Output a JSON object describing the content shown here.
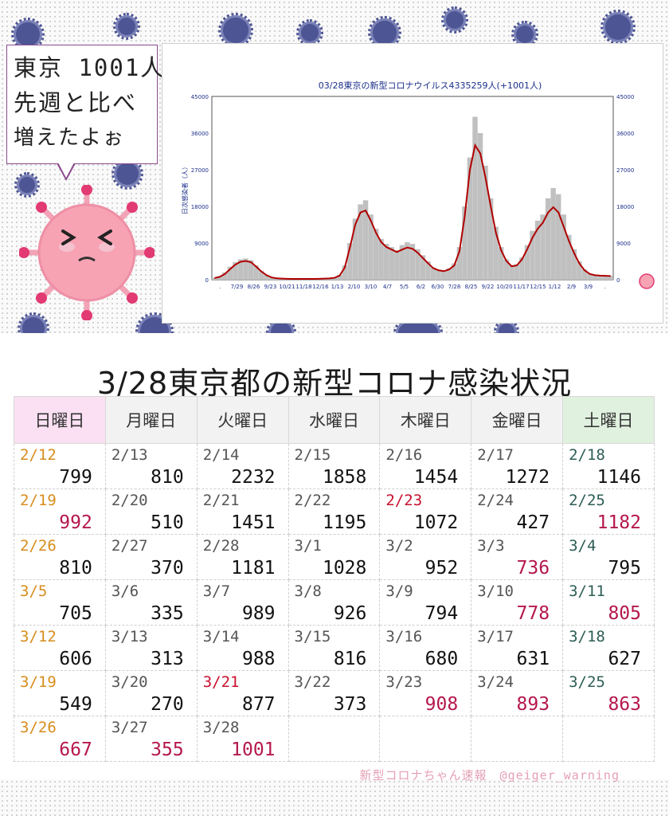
{
  "bubble": {
    "line1": "東京 1001人",
    "line2": "先週と比べ",
    "line3": "増えたよぉ"
  },
  "heading": "3/28東京都の新型コロナ感染状況",
  "footer": "新型コロナちゃん速報　@geiger_warning",
  "colors": {
    "date_orange": "#d78d1d",
    "date_red": "#c8102e",
    "date_teal": "#2d5d55",
    "value_red": "#b5174d",
    "line": "#b00000",
    "bar": "#c0c0c0"
  },
  "chart_data": {
    "type": "bar",
    "title": "03/28東京の新型コロナウイルス4335259人(+1001人)",
    "ylabel": "日次感染者（人）",
    "ylim": [
      0,
      45000
    ],
    "yticks": [
      "45000",
      "36000",
      "27000",
      "18000",
      "9000",
      "0"
    ],
    "y2ticks": [
      "45000",
      "36000",
      "27000",
      "18000",
      "9000",
      "0"
    ],
    "xticks": [
      ".",
      "7/29",
      "8/26",
      "9/23",
      "10/21",
      "11/18",
      "12/16",
      "1/13",
      "2/10",
      "3/10",
      "4/7",
      "5/5",
      "6/2",
      "6/30",
      "7/28",
      "8/25",
      "9/22",
      "10/20",
      "11/17",
      "12/15",
      "1/12",
      "2/9",
      "3/9",
      "."
    ],
    "series": [
      {
        "type": "bar",
        "values": [
          500,
          900,
          1800,
          3200,
          4300,
          5000,
          5200,
          4800,
          3500,
          2200,
          1200,
          600,
          400,
          300,
          250,
          200,
          200,
          200,
          200,
          200,
          250,
          300,
          350,
          500,
          1200,
          3500,
          9000,
          15000,
          18500,
          19500,
          16000,
          12500,
          10000,
          8800,
          8000,
          7200,
          8500,
          9200,
          8800,
          7500,
          6000,
          4500,
          3000,
          2500,
          2300,
          2800,
          4000,
          8000,
          18000,
          30000,
          40000,
          36000,
          28000,
          20000,
          13000,
          8000,
          5000,
          3500,
          3800,
          5500,
          8500,
          12000,
          14500,
          16000,
          20000,
          22500,
          21000,
          16000,
          11000,
          7500,
          4500,
          2500,
          1500,
          1200,
          1100,
          1000,
          1000
        ]
      },
      {
        "type": "line",
        "values": [
          400,
          700,
          1400,
          2600,
          3700,
          4400,
          4600,
          4300,
          3200,
          2000,
          1100,
          550,
          350,
          280,
          230,
          190,
          190,
          190,
          190,
          190,
          230,
          280,
          320,
          450,
          1000,
          3000,
          8000,
          13500,
          16500,
          17000,
          14500,
          11500,
          9200,
          8000,
          7400,
          6800,
          7400,
          7900,
          7600,
          6600,
          5300,
          4000,
          2800,
          2300,
          2100,
          2500,
          3500,
          7000,
          15500,
          27000,
          33000,
          31000,
          25000,
          18000,
          11500,
          7200,
          4600,
          3300,
          3500,
          5000,
          7500,
          10300,
          12500,
          14000,
          16500,
          17800,
          16500,
          13000,
          9500,
          6500,
          4000,
          2300,
          1400,
          1100,
          1000,
          950,
          900
        ]
      }
    ]
  },
  "table": {
    "headers": [
      "日曜日",
      "月曜日",
      "火曜日",
      "水曜日",
      "木曜日",
      "金曜日",
      "土曜日"
    ],
    "rows": [
      [
        {
          "d": "2/12",
          "v": "799"
        },
        {
          "d": "2/13",
          "v": "810"
        },
        {
          "d": "2/14",
          "v": "2232"
        },
        {
          "d": "2/15",
          "v": "1858"
        },
        {
          "d": "2/16",
          "v": "1454"
        },
        {
          "d": "2/17",
          "v": "1272"
        },
        {
          "d": "2/18",
          "v": "1146"
        }
      ],
      [
        {
          "d": "2/19",
          "v": "992"
        },
        {
          "d": "2/20",
          "v": "510"
        },
        {
          "d": "2/21",
          "v": "1451"
        },
        {
          "d": "2/22",
          "v": "1195"
        },
        {
          "d": "2/23",
          "v": "1072"
        },
        {
          "d": "2/24",
          "v": "427"
        },
        {
          "d": "2/25",
          "v": "1182"
        }
      ],
      [
        {
          "d": "2/26",
          "v": "810"
        },
        {
          "d": "2/27",
          "v": "370"
        },
        {
          "d": "2/28",
          "v": "1181"
        },
        {
          "d": "3/1",
          "v": "1028"
        },
        {
          "d": "3/2",
          "v": "952"
        },
        {
          "d": "3/3",
          "v": "736"
        },
        {
          "d": "3/4",
          "v": "795"
        }
      ],
      [
        {
          "d": "3/5",
          "v": "705"
        },
        {
          "d": "3/6",
          "v": "335"
        },
        {
          "d": "3/7",
          "v": "989"
        },
        {
          "d": "3/8",
          "v": "926"
        },
        {
          "d": "3/9",
          "v": "794"
        },
        {
          "d": "3/10",
          "v": "778"
        },
        {
          "d": "3/11",
          "v": "805"
        }
      ],
      [
        {
          "d": "3/12",
          "v": "606"
        },
        {
          "d": "3/13",
          "v": "313"
        },
        {
          "d": "3/14",
          "v": "988"
        },
        {
          "d": "3/15",
          "v": "816"
        },
        {
          "d": "3/16",
          "v": "680"
        },
        {
          "d": "3/17",
          "v": "631"
        },
        {
          "d": "3/18",
          "v": "627"
        }
      ],
      [
        {
          "d": "3/19",
          "v": "549"
        },
        {
          "d": "3/20",
          "v": "270"
        },
        {
          "d": "3/21",
          "v": "877"
        },
        {
          "d": "3/22",
          "v": "373"
        },
        {
          "d": "3/23",
          "v": "908"
        },
        {
          "d": "3/24",
          "v": "893"
        },
        {
          "d": "3/25",
          "v": "863"
        }
      ],
      [
        {
          "d": "3/26",
          "v": "667"
        },
        {
          "d": "3/27",
          "v": "355"
        },
        {
          "d": "3/28",
          "v": "1001"
        },
        {
          "d": "",
          "v": ""
        },
        {
          "d": "",
          "v": ""
        },
        {
          "d": "",
          "v": ""
        },
        {
          "d": "",
          "v": ""
        }
      ]
    ],
    "red_dates": [
      "2/23",
      "3/21"
    ],
    "red_values": [
      "992",
      "1182",
      "736",
      "778",
      "805",
      "908",
      "893",
      "863",
      "667",
      "355",
      "1001"
    ]
  }
}
